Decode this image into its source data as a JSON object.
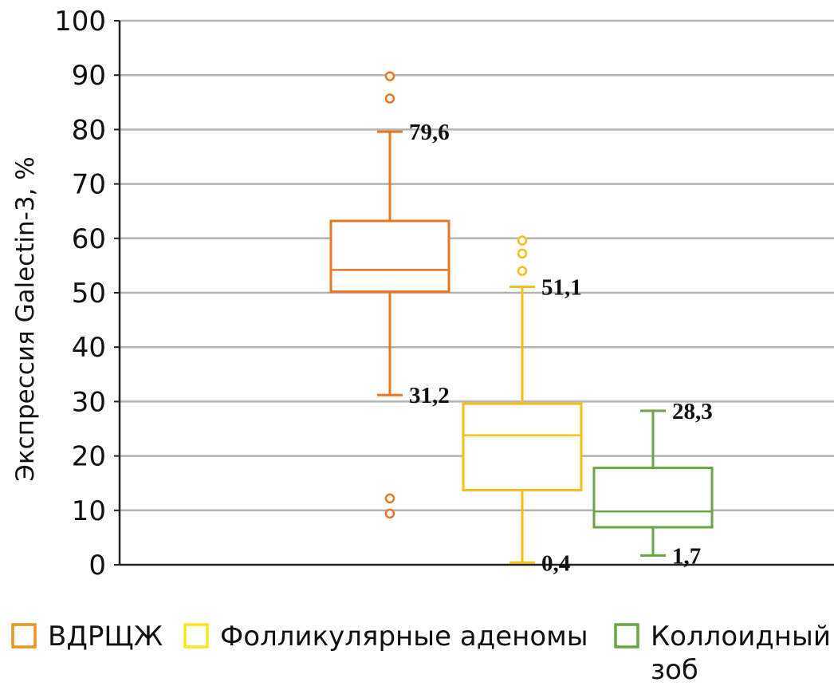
{
  "chart_data": {
    "type": "boxplot",
    "ylabel": "Экспрессия Galectin-3, %",
    "ylim": [
      0,
      100
    ],
    "yticks": [
      0,
      10,
      20,
      30,
      40,
      50,
      60,
      70,
      80,
      90,
      100
    ],
    "grid": true,
    "legend_position": "bottom",
    "series": [
      {
        "name": "ВДРЩЖ",
        "color": "#E87722",
        "whisker_low": 31.2,
        "q1": 50.2,
        "median": 54.2,
        "q3": 63.2,
        "whisker_high": 79.6,
        "outliers": [
          89.8,
          85.7,
          12.2,
          9.4
        ],
        "label_high": "79,6",
        "label_low": "31,2"
      },
      {
        "name": "Фолликулярные аденомы",
        "color": "#F7BE16",
        "whisker_low": 0.4,
        "q1": 13.7,
        "median": 23.8,
        "q3": 29.6,
        "whisker_high": 51.1,
        "outliers": [
          59.6,
          57.2,
          54.0
        ],
        "label_high": "51,1",
        "label_low": "0,4"
      },
      {
        "name": "Коллоидный зоб",
        "color": "#6AA543",
        "whisker_low": 1.7,
        "q1": 6.9,
        "median": 9.8,
        "q3": 17.8,
        "whisker_high": 28.3,
        "outliers": [],
        "label_high": "28,3",
        "label_low": "1,7"
      }
    ],
    "legend": [
      {
        "label": "ВДРЩЖ",
        "color": "#E8961E"
      },
      {
        "label": "Фолликулярные аденомы",
        "color": "#F8E81A"
      },
      {
        "label_lines": [
          "Коллоидный",
          "зоб"
        ],
        "color": "#6AA543"
      }
    ]
  }
}
